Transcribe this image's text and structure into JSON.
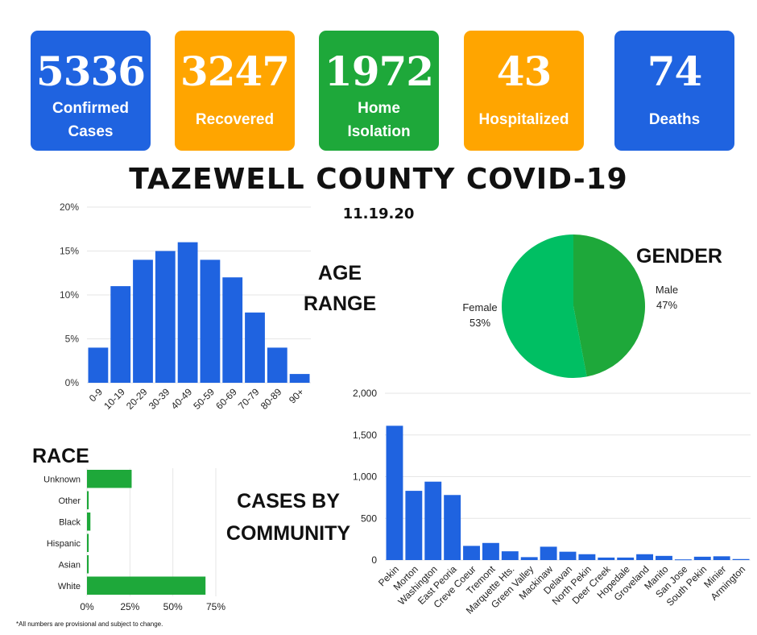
{
  "stats": [
    {
      "value": "5336",
      "label": "Confirmed Cases",
      "color": "#1f63e0"
    },
    {
      "value": "3247",
      "label": "Recovered",
      "color": "#ffa500"
    },
    {
      "value": "1972",
      "label": "Home Isolation",
      "color": "#1ea83a"
    },
    {
      "value": "43",
      "label": "Hospitalized",
      "color": "#ffa500"
    },
    {
      "value": "74",
      "label": "Deaths",
      "color": "#1f63e0"
    }
  ],
  "title": "TAZEWELL COUNTY COVID-19",
  "date": "11.19.20",
  "labels": {
    "age_line1": "AGE",
    "age_line2": "RANGE",
    "gender": "GENDER",
    "race": "RACE",
    "community_line1": "CASES BY",
    "community_line2": "COMMUNITY"
  },
  "footnote": "*All  numbers are provisional  and subject to change.",
  "chart_data": [
    {
      "type": "bar",
      "name": "age",
      "categories": [
        "0-9",
        "10-19",
        "20-29",
        "30-39",
        "40-49",
        "50-59",
        "60-69",
        "70-79",
        "80-89",
        "90+"
      ],
      "values": [
        4,
        11,
        14,
        15,
        16,
        14,
        12,
        8,
        4,
        1
      ],
      "yticks": [
        "0%",
        "5%",
        "10%",
        "15%",
        "20%"
      ],
      "ylim": [
        0,
        20
      ],
      "color": "#1f63e0"
    },
    {
      "type": "pie",
      "name": "gender",
      "slices": [
        {
          "label": "Male",
          "percent_label": "47%",
          "value": 47,
          "color": "#1ea83a"
        },
        {
          "label": "Female",
          "percent_label": "53%",
          "value": 53,
          "color": "#00bf63"
        }
      ]
    },
    {
      "type": "bar",
      "name": "race",
      "orientation": "horizontal",
      "categories": [
        "Unknown",
        "Other",
        "Black",
        "Hispanic",
        "Asian",
        "White"
      ],
      "values": [
        26,
        1,
        2,
        1,
        1,
        69
      ],
      "xticks": [
        "0%",
        "25%",
        "50%",
        "75%"
      ],
      "xlim": [
        0,
        75
      ],
      "color": "#1ea83a"
    },
    {
      "type": "bar",
      "name": "community",
      "categories": [
        "Pekin",
        "Morton",
        "Washington",
        "East Peoria",
        "Creve Coeur",
        "Tremont",
        "Marquette Hts.",
        "Green Valley",
        "Mackinaw",
        "Delavan",
        "North Pekin",
        "Deer Creek",
        "Hopedale",
        "Groveland",
        "Manito",
        "San Jose",
        "South Pekin",
        "Minier",
        "Armington"
      ],
      "values": [
        1610,
        830,
        940,
        780,
        170,
        205,
        105,
        35,
        160,
        100,
        70,
        30,
        30,
        70,
        50,
        8,
        40,
        45,
        12
      ],
      "yticks": [
        "0",
        "500",
        "1,000",
        "1,500",
        "2,000"
      ],
      "ylim": [
        0,
        2000
      ],
      "color": "#1f63e0"
    }
  ]
}
